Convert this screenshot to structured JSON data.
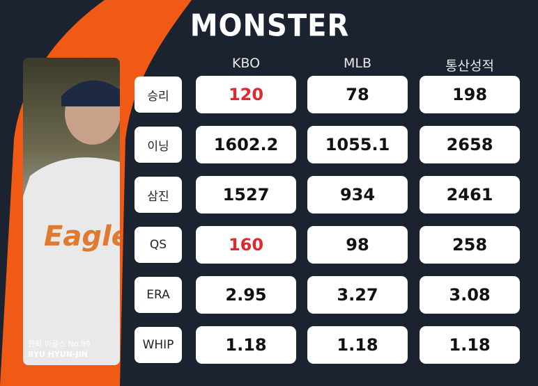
{
  "header": {
    "title": "MONSTER"
  },
  "player": {
    "team": "한화 이글스 No.99",
    "name": "RYU HYUN-JIN"
  },
  "table": {
    "columns": [
      "KBO",
      "MLB",
      "통산성적"
    ],
    "highlight_color": "#e0282e",
    "rows": [
      {
        "label": "승리",
        "values": [
          "120",
          "78",
          "198"
        ],
        "highlight": [
          0
        ]
      },
      {
        "label": "이닝",
        "values": [
          "1602.2",
          "1055.1",
          "2658"
        ]
      },
      {
        "label": "삼진",
        "values": [
          "1527",
          "934",
          "2461"
        ]
      },
      {
        "label": "QS",
        "values": [
          "160",
          "98",
          "258"
        ],
        "highlight": [
          0
        ]
      },
      {
        "label": "ERA",
        "values": [
          "2.95",
          "3.27",
          "3.08"
        ]
      },
      {
        "label": "WHIP",
        "values": [
          "1.18",
          "1.18",
          "1.18"
        ]
      }
    ]
  }
}
